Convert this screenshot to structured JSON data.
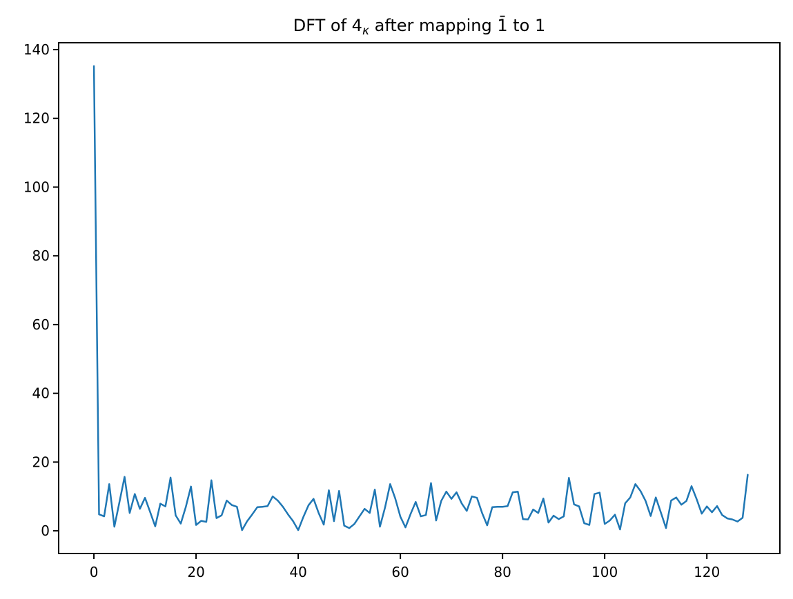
{
  "chart_data": {
    "type": "line",
    "title": "DFT of 4κ after mapping 1̄ to 1",
    "title_parts": {
      "prefix": "DFT of 4",
      "subscript": "κ",
      "suffix": " after mapping 1̄ to 1"
    },
    "xlabel": "",
    "ylabel": "",
    "x_start": 0,
    "x_step": 1,
    "values": [
      135.2,
      4.8,
      4.2,
      13.6,
      1.2,
      8.4,
      15.7,
      5.2,
      10.7,
      6.4,
      9.6,
      5.5,
      1.3,
      7.9,
      7.1,
      15.5,
      4.5,
      2.1,
      7.0,
      12.9,
      1.7,
      2.9,
      2.6,
      14.7,
      3.7,
      4.5,
      8.8,
      7.5,
      7.0,
      0.2,
      2.8,
      4.8,
      6.9,
      7.0,
      7.2,
      10.0,
      8.8,
      7.0,
      4.8,
      2.8,
      0.2,
      4.0,
      7.4,
      9.3,
      5.2,
      1.8,
      11.8,
      2.8,
      11.6,
      1.5,
      0.8,
      2.0,
      4.2,
      6.4,
      5.2,
      12.0,
      1.2,
      6.8,
      13.6,
      9.4,
      4.1,
      1.0,
      4.9,
      8.4,
      4.2,
      4.6,
      13.9,
      3.0,
      8.7,
      11.4,
      9.3,
      11.2,
      8.0,
      5.8,
      10.0,
      9.6,
      5.2,
      1.6,
      6.9,
      7.0,
      7.0,
      7.2,
      11.2,
      11.4,
      3.4,
      3.3,
      6.2,
      5.2,
      9.4,
      2.4,
      4.4,
      3.4,
      4.2,
      15.4,
      7.7,
      7.1,
      2.2,
      1.7,
      10.7,
      11.1,
      2.0,
      3.0,
      4.7,
      0.4,
      8.0,
      9.7,
      13.6,
      11.6,
      8.7,
      4.3,
      9.7,
      5.3,
      0.8,
      8.8,
      9.7,
      7.6,
      8.7,
      13.0,
      9.2,
      5.0,
      7.1,
      5.4,
      7.2,
      4.6,
      3.6,
      3.3,
      2.7,
      3.8,
      16.3
    ],
    "xticks": [
      0,
      20,
      40,
      60,
      80,
      100,
      120
    ],
    "yticks": [
      0,
      20,
      40,
      60,
      80,
      100,
      120,
      140
    ],
    "xlim": [
      -6.9,
      134.3
    ],
    "ylim": [
      -6.6,
      142.0
    ],
    "grid": false,
    "legend_position": "none",
    "line_color": "#1f77b4",
    "axis_color": "#000000",
    "background": "#ffffff"
  }
}
